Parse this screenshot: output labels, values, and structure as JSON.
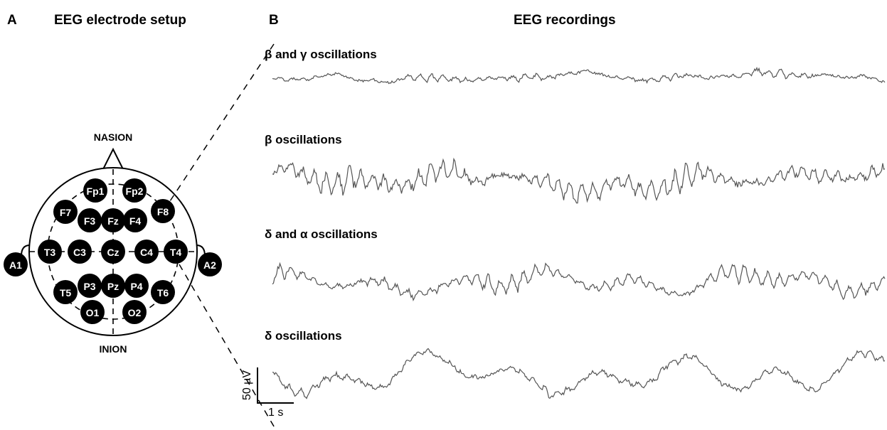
{
  "panel_a": {
    "label": "A",
    "title": "EEG electrode setup",
    "landmarks": {
      "nasion": "NASION",
      "inion": "INION"
    },
    "electrodes": [
      "Fp1",
      "Fp2",
      "F7",
      "F3",
      "Fz",
      "F4",
      "F8",
      "A1",
      "T3",
      "C3",
      "Cz",
      "C4",
      "T4",
      "A2",
      "T5",
      "P3",
      "Pz",
      "P4",
      "T6",
      "O1",
      "O2"
    ]
  },
  "panel_b": {
    "label": "B",
    "title": "EEG recordings",
    "traces": [
      {
        "label": "β and γ oscillations"
      },
      {
        "label": "β oscillations"
      },
      {
        "label": "δ and α oscillations"
      },
      {
        "label": "δ oscillations"
      }
    ],
    "scale_bar": {
      "amplitude": "50 µV",
      "time": "1 s"
    }
  }
}
